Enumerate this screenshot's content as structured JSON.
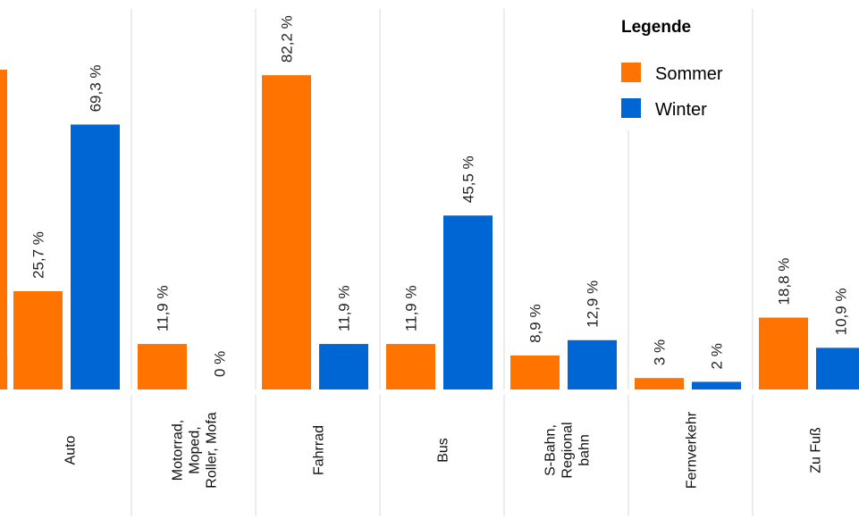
{
  "chart_data": {
    "type": "bar",
    "categories": [
      [
        "Auto"
      ],
      [
        "Motorrad,",
        "Moped,",
        "Roller, Mofa"
      ],
      [
        "Fahrrad"
      ],
      [
        "Bus"
      ],
      [
        "S-Bahn,",
        "Regional",
        "bahn"
      ],
      [
        "Fernverkehr"
      ],
      [
        "Zu Fuß"
      ]
    ],
    "series": [
      {
        "name": "Sommer",
        "color": "#FF7400",
        "values": [
          25.7,
          11.9,
          82.2,
          11.9,
          8.9,
          3,
          18.8
        ],
        "labels": [
          "25,7 %",
          "11,9 %",
          "82,2 %",
          "11,9 %",
          "8,9 %",
          "3 %",
          "18,8 %"
        ]
      },
      {
        "name": "Winter",
        "color": "#0066D4",
        "values": [
          69.3,
          0,
          11.9,
          45.5,
          12.9,
          2,
          10.9
        ],
        "labels": [
          "69,3 %",
          "0 %",
          "11,9 %",
          "45,5 %",
          "12,9 %",
          "2 %",
          "10,9 %"
        ]
      }
    ],
    "ylim": [
      0,
      100
    ],
    "grid": false,
    "legend": {
      "title": "Legende",
      "position": "top-right"
    }
  }
}
